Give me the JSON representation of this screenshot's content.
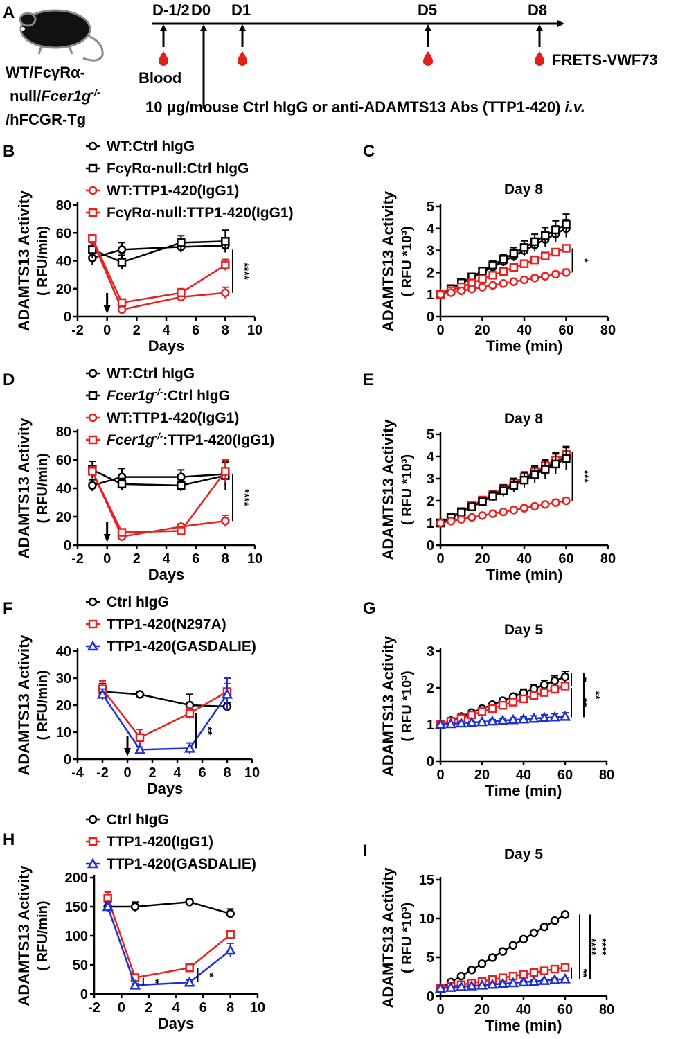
{
  "colors": {
    "black": "#000000",
    "red": "#e8201f",
    "blue": "#1e2fd6"
  },
  "schematic": {
    "panel_label": "A",
    "timepoints": [
      "D-1/2",
      "D0",
      "D1",
      "D5",
      "D8"
    ],
    "strain_lines": [
      "WT/FcγRα-",
      "null/",
      "Fcer1g",
      "-/-",
      "/hFCGR-Tg"
    ],
    "blood_label": "Blood",
    "assay_label": "FRETS-VWF73",
    "treatment_main": "10 μg/mouse Ctrl hIgG or anti-ADAMTS13 Abs (TTP1-420) ",
    "treatment_italic": "i.v.",
    "icons": [
      "mouse-icon",
      "blood-drop-icon",
      "arrow-up-icon"
    ]
  },
  "chart_data": [
    {
      "panel": "B",
      "type": "line",
      "title": "",
      "xlabel": "Days",
      "ylabel": "ADAMTS13 Activity",
      "ylabel2": "( RFU/min)",
      "xlim": [
        -2,
        10
      ],
      "xticks": [
        -2,
        0,
        2,
        4,
        6,
        8,
        10
      ],
      "ylim": [
        0,
        80
      ],
      "yticks": [
        0,
        20,
        40,
        60,
        80
      ],
      "injection_marker_day": 0,
      "legend": [
        {
          "name": "WT:Ctrl hIgG",
          "parts": [
            {
              "t": "WT:Ctrl hIgG"
            }
          ]
        },
        {
          "name": "FcγRα-null:Ctrl hIgG",
          "parts": [
            {
              "t": "FcγRα-null:Ctrl hIgG"
            }
          ]
        },
        {
          "name": "WT:TTP1-420(IgG1)",
          "parts": [
            {
              "t": "WT:TTP1-420(IgG1)"
            }
          ]
        },
        {
          "name": "FcγRα-null:TTP1-420(IgG1)",
          "parts": [
            {
              "t": "FcγRα-null:TTP1-420(IgG1)"
            }
          ]
        }
      ],
      "series": [
        {
          "name": "WT:Ctrl hIgG",
          "color": "#000000",
          "marker": "circle",
          "x": [
            -1,
            1,
            5,
            8
          ],
          "y": [
            42,
            48,
            50,
            51
          ],
          "err": [
            5,
            5,
            4,
            5
          ]
        },
        {
          "name": "FcγRα-null:Ctrl hIgG",
          "color": "#000000",
          "marker": "square",
          "x": [
            -1,
            1,
            5,
            8
          ],
          "y": [
            48,
            39,
            53,
            54
          ],
          "err": [
            6,
            5,
            5,
            8
          ]
        },
        {
          "name": "WT:TTP1-420(IgG1)",
          "color": "#e8201f",
          "marker": "circle",
          "x": [
            -1,
            1,
            5,
            8
          ],
          "y": [
            55,
            5,
            14,
            17
          ],
          "err": [
            3,
            2,
            3,
            4
          ]
        },
        {
          "name": "FcγRα-null:TTP1-420(IgG1)",
          "color": "#e8201f",
          "marker": "square",
          "x": [
            -1,
            1,
            5,
            8
          ],
          "y": [
            56,
            10,
            17,
            37
          ],
          "err": [
            2,
            2,
            3,
            4
          ]
        }
      ],
      "significance": [
        {
          "label": "****",
          "x": 8.5,
          "y1": 17,
          "y2": 48
        }
      ]
    },
    {
      "panel": "C",
      "type": "line",
      "title": "Day 8",
      "xlabel": "Time (min)",
      "ylabel": "ADAMTS13 Activity",
      "ylabel2": "( RFU *10³)",
      "xlim": [
        0,
        80
      ],
      "xticks": [
        0,
        20,
        40,
        60,
        80
      ],
      "ylim": [
        0,
        5
      ],
      "yticks": [
        0,
        1,
        2,
        3,
        4,
        5
      ],
      "series": [
        {
          "name": "WT:Ctrl hIgG",
          "color": "#000000",
          "marker": "circle",
          "x0": 0,
          "x1": 60,
          "y0": 1.0,
          "y1": 4.0,
          "err": 0.4
        },
        {
          "name": "FcγRα-null:Ctrl hIgG",
          "color": "#000000",
          "marker": "square",
          "x0": 0,
          "x1": 60,
          "y0": 1.0,
          "y1": 4.2,
          "err": 0.45
        },
        {
          "name": "FcγRα-null:TTP1-420(IgG1)",
          "color": "#e8201f",
          "marker": "square",
          "x0": 0,
          "x1": 60,
          "y0": 1.0,
          "y1": 3.1,
          "err": 0.15
        },
        {
          "name": "WT:TTP1-420(IgG1)",
          "color": "#e8201f",
          "marker": "circle",
          "x0": 0,
          "x1": 60,
          "y0": 1.0,
          "y1": 2.0,
          "err": 0.15
        }
      ],
      "significance": [
        {
          "label": "*",
          "x": 63,
          "y1": 2.0,
          "y2": 3.1
        }
      ]
    },
    {
      "panel": "D",
      "type": "line",
      "title": "",
      "xlabel": "Days",
      "ylabel": "ADAMTS13 Activity",
      "ylabel2": "( RFU/min)",
      "xlim": [
        -2,
        10
      ],
      "xticks": [
        -2,
        0,
        2,
        4,
        6,
        8,
        10
      ],
      "ylim": [
        0,
        80
      ],
      "yticks": [
        0,
        20,
        40,
        60,
        80
      ],
      "injection_marker_day": 0,
      "legend": [
        {
          "name": "WT:Ctrl hIgG",
          "parts": [
            {
              "t": "WT:Ctrl hIgG"
            }
          ]
        },
        {
          "name": "Fcer1g-/-:Ctrl hIgG",
          "parts": [
            {
              "t": "Fcer1g",
              "i": true
            },
            {
              "t": "-/-",
              "i": true,
              "sup": true
            },
            {
              "t": ":Ctrl hIgG"
            }
          ]
        },
        {
          "name": "WT:TTP1-420(IgG1)",
          "parts": [
            {
              "t": "WT:TTP1-420(IgG1)"
            }
          ]
        },
        {
          "name": "Fcer1g-/-:TTP1-420(IgG1)",
          "parts": [
            {
              "t": "Fcer1g",
              "i": true
            },
            {
              "t": "-/-",
              "i": true,
              "sup": true
            },
            {
              "t": ":TTP1-420(IgG1)"
            }
          ]
        }
      ],
      "series": [
        {
          "name": "WT:Ctrl hIgG",
          "color": "#000000",
          "marker": "circle",
          "x": [
            -1,
            1,
            5,
            8
          ],
          "y": [
            42,
            48,
            48,
            50
          ],
          "err": [
            4,
            6,
            5,
            8
          ]
        },
        {
          "name": "Fcer1g-/-:Ctrl hIgG",
          "color": "#000000",
          "marker": "square",
          "x": [
            -1,
            1,
            5,
            8
          ],
          "y": [
            53,
            43,
            42,
            49
          ],
          "err": [
            6,
            4,
            4,
            10
          ]
        },
        {
          "name": "WT:TTP1-420(IgG1)",
          "color": "#e8201f",
          "marker": "circle",
          "x": [
            -1,
            1,
            5,
            8
          ],
          "y": [
            52,
            6,
            13,
            17
          ],
          "err": [
            3,
            2,
            2,
            4
          ]
        },
        {
          "name": "Fcer1g-/-:TTP1-420(IgG1)",
          "color": "#e8201f",
          "marker": "square",
          "x": [
            -1,
            1,
            5,
            8
          ],
          "y": [
            52,
            9,
            10,
            52
          ],
          "err": [
            3,
            2,
            3,
            8
          ]
        }
      ],
      "significance": [
        {
          "label": "****",
          "x": 8.5,
          "y1": 17,
          "y2": 50
        }
      ]
    },
    {
      "panel": "E",
      "type": "line",
      "title": "Day 8",
      "xlabel": "Time (min)",
      "ylabel": "ADAMTS13 Activity",
      "ylabel2": "( RFU *10³)",
      "xlim": [
        0,
        80
      ],
      "xticks": [
        0,
        20,
        40,
        60,
        80
      ],
      "ylim": [
        0,
        5
      ],
      "yticks": [
        0,
        1,
        2,
        3,
        4,
        5
      ],
      "series": [
        {
          "name": "WT:Ctrl hIgG",
          "color": "#000000",
          "marker": "circle",
          "x0": 0,
          "x1": 60,
          "y0": 1.0,
          "y1": 4.0,
          "err": 0.45
        },
        {
          "name": "Fcer1g-/-:TTP1-420(IgG1)",
          "color": "#e8201f",
          "marker": "square",
          "x0": 0,
          "x1": 60,
          "y0": 1.0,
          "y1": 4.1,
          "err": 0.3
        },
        {
          "name": "Fcer1g-/-:Ctrl hIgG",
          "color": "#000000",
          "marker": "square",
          "x0": 0,
          "x1": 60,
          "y0": 1.0,
          "y1": 3.9,
          "err": 0.5
        },
        {
          "name": "WT:TTP1-420(IgG1)",
          "color": "#e8201f",
          "marker": "circle",
          "x0": 0,
          "x1": 60,
          "y0": 1.0,
          "y1": 2.0,
          "err": 0.15
        }
      ],
      "significance": [
        {
          "label": "***",
          "x": 63,
          "y1": 2.0,
          "y2": 4.2
        }
      ]
    },
    {
      "panel": "F",
      "type": "line",
      "title": "",
      "xlabel": "Days",
      "ylabel": "ADAMTS13 Activity",
      "ylabel2": "( RFU/min)",
      "xlim": [
        -4,
        10
      ],
      "xticks": [
        -4,
        -2,
        0,
        2,
        4,
        6,
        8,
        10
      ],
      "ylim": [
        0,
        40
      ],
      "yticks": [
        0,
        10,
        20,
        30,
        40
      ],
      "injection_marker_day": 0,
      "legend": [
        {
          "name": "Ctrl hIgG",
          "parts": [
            {
              "t": "Ctrl hIgG"
            }
          ]
        },
        {
          "name": "TTP1-420(N297A)",
          "parts": [
            {
              "t": "TTP1-420(N297A)"
            }
          ]
        },
        {
          "name": "TTP1-420(GASDALIE)",
          "parts": [
            {
              "t": "TTP1-420(GASDALIE)"
            }
          ]
        }
      ],
      "series": [
        {
          "name": "Ctrl hIgG",
          "color": "#000000",
          "marker": "circle",
          "x": [
            -2,
            1,
            5,
            8
          ],
          "y": [
            25,
            24,
            20,
            19.5
          ],
          "err": [
            3,
            1,
            4,
            1.5
          ]
        },
        {
          "name": "TTP1-420(N297A)",
          "color": "#e8201f",
          "marker": "square",
          "x": [
            -2,
            1,
            5,
            8
          ],
          "y": [
            26,
            8,
            17,
            25
          ],
          "err": [
            3,
            3,
            2,
            3
          ]
        },
        {
          "name": "TTP1-420(GASDALIE)",
          "color": "#1e2fd6",
          "marker": "triangle",
          "x": [
            -2,
            1,
            5,
            8
          ],
          "y": [
            24,
            3.5,
            4,
            24
          ],
          "err": [
            2,
            1,
            2,
            6
          ]
        }
      ],
      "significance": [
        {
          "label": "**",
          "x": 5.5,
          "y1": 4,
          "y2": 17
        }
      ]
    },
    {
      "panel": "G",
      "type": "line",
      "title": "Day 5",
      "xlabel": "Time (min)",
      "ylabel": "ADAMTS13 Activity",
      "ylabel2": "( RFU *10³)",
      "xlim": [
        0,
        80
      ],
      "xticks": [
        0,
        20,
        40,
        60,
        80
      ],
      "ylim": [
        0,
        3
      ],
      "yticks": [
        0,
        1,
        2,
        3
      ],
      "series": [
        {
          "name": "Ctrl hIgG",
          "color": "#000000",
          "marker": "circle",
          "x0": 0,
          "x1": 60,
          "y0": 1.0,
          "y1": 2.3,
          "err": 0.15
        },
        {
          "name": "TTP1-420(N297A)",
          "color": "#e8201f",
          "marker": "square",
          "x0": 0,
          "x1": 60,
          "y0": 1.0,
          "y1": 2.05,
          "err": 0.07
        },
        {
          "name": "TTP1-420(GASDALIE)",
          "color": "#1e2fd6",
          "marker": "triangle",
          "x0": 0,
          "x1": 60,
          "y0": 1.0,
          "y1": 1.22,
          "err": 0.1
        }
      ],
      "significance": [
        {
          "label": "*",
          "x": 63,
          "y1": 2.05,
          "y2": 2.4
        },
        {
          "label": "**",
          "x": 63,
          "y1": 1.2,
          "y2": 2.0
        },
        {
          "label": "**",
          "x": 69,
          "y1": 1.2,
          "y2": 2.4
        }
      ]
    },
    {
      "panel": "H",
      "type": "line",
      "title": "",
      "xlabel": "Days",
      "ylabel": "ADAMTS13 Activity",
      "ylabel2": "( RFU/min)",
      "xlim": [
        -2,
        10
      ],
      "xticks": [
        -2,
        0,
        2,
        4,
        6,
        8,
        10
      ],
      "ylim": [
        0,
        200
      ],
      "yticks": [
        0,
        50,
        100,
        150,
        200
      ],
      "legend": [
        {
          "name": "Ctrl hIgG",
          "parts": [
            {
              "t": "Ctrl hIgG"
            }
          ]
        },
        {
          "name": "TTP1-420(IgG1)",
          "parts": [
            {
              "t": "TTP1-420(IgG1)"
            }
          ]
        },
        {
          "name": "TTP1-420(GASDALIE)",
          "parts": [
            {
              "t": "TTP1-420(GASDALIE)"
            }
          ]
        }
      ],
      "series": [
        {
          "name": "Ctrl hIgG",
          "color": "#000000",
          "marker": "circle",
          "x": [
            -1,
            1,
            5,
            8
          ],
          "y": [
            150,
            150,
            158,
            138
          ],
          "err": [
            8,
            8,
            4,
            8
          ]
        },
        {
          "name": "TTP1-420(IgG1)",
          "color": "#e8201f",
          "marker": "square",
          "x": [
            -1,
            1,
            5,
            8
          ],
          "y": [
            165,
            28,
            45,
            102
          ],
          "err": [
            10,
            4,
            4,
            6
          ]
        },
        {
          "name": "TTP1-420(GASDALIE)",
          "color": "#1e2fd6",
          "marker": "triangle",
          "x": [
            -1,
            1,
            5,
            8
          ],
          "y": [
            150,
            15,
            20,
            75
          ],
          "err": [
            8,
            3,
            4,
            12
          ]
        }
      ],
      "significance": [
        {
          "label": "*",
          "x": 1.6,
          "y1": 15,
          "y2": 28
        },
        {
          "label": "*",
          "x": 5.6,
          "y1": 20,
          "y2": 45
        }
      ]
    },
    {
      "panel": "I",
      "type": "line",
      "title": "Day 5",
      "xlabel": "Time (min)",
      "ylabel": "ADAMTS13 Activity",
      "ylabel2": "( RFU *10³)",
      "xlim": [
        0,
        80
      ],
      "xticks": [
        0,
        20,
        40,
        60,
        80
      ],
      "ylim": [
        0,
        15
      ],
      "yticks": [
        0,
        5,
        10,
        15
      ],
      "series": [
        {
          "name": "Ctrl hIgG",
          "color": "#000000",
          "marker": "circle",
          "x0": 0,
          "x1": 60,
          "y0": 1.0,
          "y1": 10.5,
          "err": 0.2
        },
        {
          "name": "TTP1-420(IgG1)",
          "color": "#e8201f",
          "marker": "square",
          "x0": 0,
          "x1": 60,
          "y0": 1.0,
          "y1": 3.7,
          "err": 0.2
        },
        {
          "name": "TTP1-420(GASDALIE)",
          "color": "#1e2fd6",
          "marker": "triangle",
          "x0": 0,
          "x1": 60,
          "y0": 1.0,
          "y1": 2.2,
          "err": 0.2
        }
      ],
      "significance": [
        {
          "label": "**",
          "x": 63,
          "y1": 2.2,
          "y2": 3.7
        },
        {
          "label": "****",
          "x": 67,
          "y1": 2.2,
          "y2": 10.5
        },
        {
          "label": "****",
          "x": 72,
          "y1": 2.2,
          "y2": 10.5
        }
      ]
    }
  ]
}
